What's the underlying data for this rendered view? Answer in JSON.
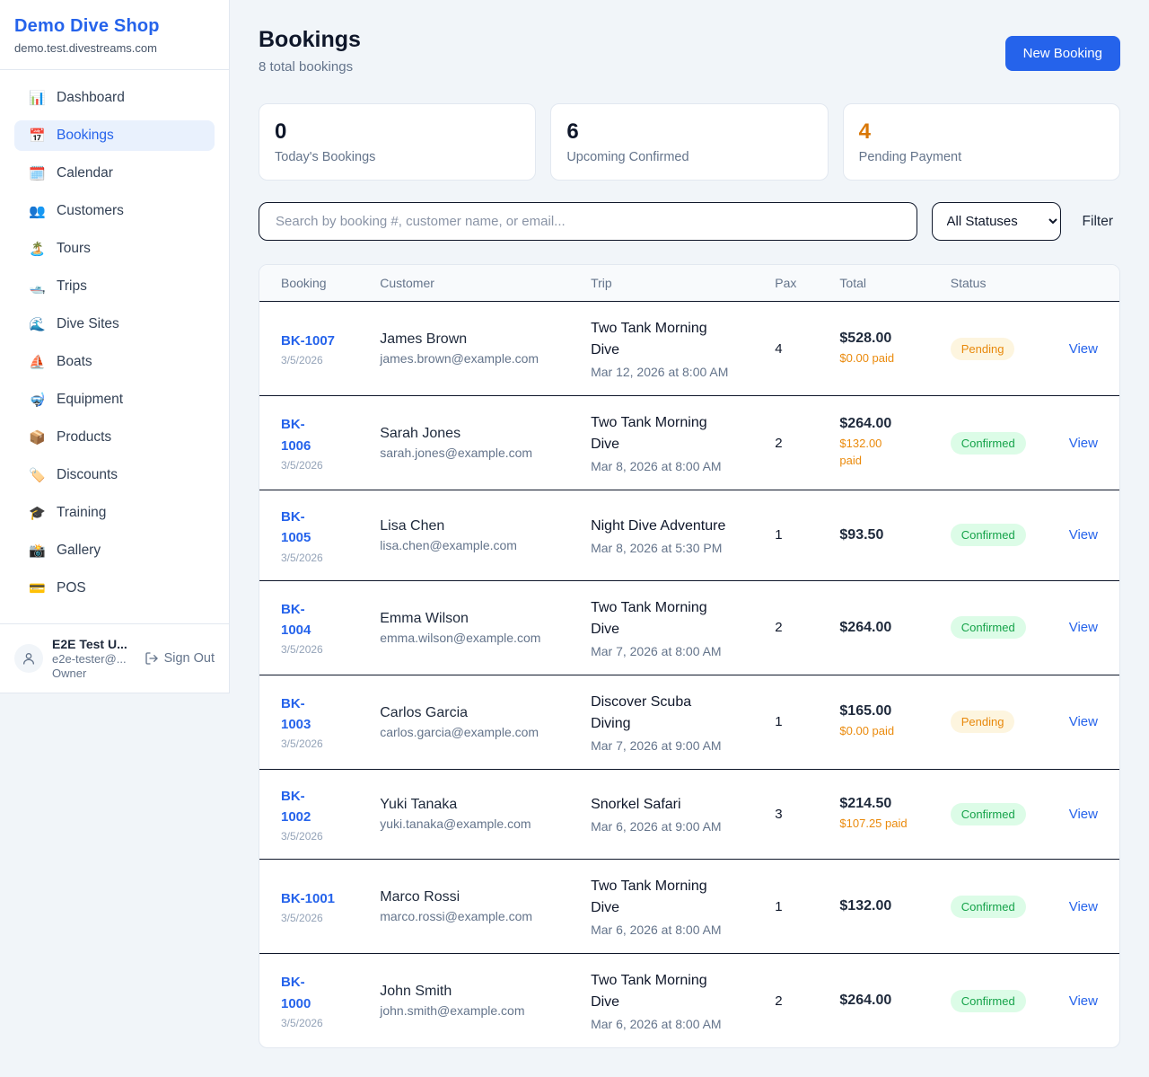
{
  "brand": {
    "name": "Demo Dive Shop",
    "domain": "demo.test.divestreams.com",
    "accent_color": "#2563eb"
  },
  "sidebar": {
    "items": [
      {
        "icon": "dashboard",
        "glyph": "📊",
        "label": "Dashboard",
        "active": false
      },
      {
        "icon": "bookings",
        "glyph": "📅",
        "label": "Bookings",
        "active": true
      },
      {
        "icon": "calendar",
        "glyph": "🗓️",
        "label": "Calendar",
        "active": false
      },
      {
        "icon": "customers",
        "glyph": "👥",
        "label": "Customers",
        "active": false
      },
      {
        "icon": "tours",
        "glyph": "🏝️",
        "label": "Tours",
        "active": false
      },
      {
        "icon": "trips",
        "glyph": "🛥️",
        "label": "Trips",
        "active": false
      },
      {
        "icon": "dive-sites",
        "glyph": "🌊",
        "label": "Dive Sites",
        "active": false
      },
      {
        "icon": "boats",
        "glyph": "⛵",
        "label": "Boats",
        "active": false
      },
      {
        "icon": "equipment",
        "glyph": "🤿",
        "label": "Equipment",
        "active": false
      },
      {
        "icon": "products",
        "glyph": "📦",
        "label": "Products",
        "active": false
      },
      {
        "icon": "discounts",
        "glyph": "🏷️",
        "label": "Discounts",
        "active": false
      },
      {
        "icon": "training",
        "glyph": "🎓",
        "label": "Training",
        "active": false
      },
      {
        "icon": "gallery",
        "glyph": "📸",
        "label": "Gallery",
        "active": false
      },
      {
        "icon": "pos",
        "glyph": "💳",
        "label": "POS",
        "active": false
      }
    ]
  },
  "user": {
    "name": "E2E Test U...",
    "email": "e2e-tester@...",
    "role": "Owner",
    "sign_out_label": "Sign Out"
  },
  "header": {
    "title": "Bookings",
    "subtitle": "8 total bookings",
    "new_booking_label": "New Booking"
  },
  "stats": [
    {
      "value": "0",
      "label": "Today's Bookings",
      "accent_color": "#0f172a"
    },
    {
      "value": "6",
      "label": "Upcoming Confirmed",
      "accent_color": "#0f172a"
    },
    {
      "value": "4",
      "label": "Pending Payment",
      "accent_color": "#d97706"
    }
  ],
  "controls": {
    "search_placeholder": "Search by booking #, customer name, or email...",
    "status_filter_value": "All Statuses",
    "filter_label": "Filter"
  },
  "status_colors": {
    "pending": {
      "bg": "#fdf5df",
      "text": "#e8890c"
    },
    "confirmed": {
      "bg": "#dcfce7",
      "text": "#16a34a"
    }
  },
  "table": {
    "columns": [
      "Booking",
      "Customer",
      "Trip",
      "Pax",
      "Total",
      "Status"
    ],
    "view_label": "View",
    "rows": [
      {
        "booking_id": "BK-1007",
        "booking_date": "3/5/2026",
        "customer_name": "James Brown",
        "customer_email": "james.brown@example.com",
        "trip_name": "Two Tank Morning Dive",
        "trip_datetime": "Mar 12, 2026 at 8:00 AM",
        "pax": "4",
        "total": "$528.00",
        "paid": "$0.00 paid",
        "status": "Pending"
      },
      {
        "booking_id": "BK-\n1006",
        "booking_date": "3/5/2026",
        "customer_name": "Sarah Jones",
        "customer_email": "sarah.jones@example.com",
        "trip_name": "Two Tank Morning Dive",
        "trip_datetime": "Mar 8, 2026 at 8:00 AM",
        "pax": "2",
        "total": "$264.00",
        "paid": "$132.00\npaid",
        "status": "Confirmed"
      },
      {
        "booking_id": "BK-\n1005",
        "booking_date": "3/5/2026",
        "customer_name": "Lisa Chen",
        "customer_email": "lisa.chen@example.com",
        "trip_name": "Night Dive Adventure",
        "trip_datetime": "Mar 8, 2026 at 5:30 PM",
        "pax": "1",
        "total": "$93.50",
        "paid": null,
        "status": "Confirmed"
      },
      {
        "booking_id": "BK-\n1004",
        "booking_date": "3/5/2026",
        "customer_name": "Emma Wilson",
        "customer_email": "emma.wilson@example.com",
        "trip_name": "Two Tank Morning Dive",
        "trip_datetime": "Mar 7, 2026 at 8:00 AM",
        "pax": "2",
        "total": "$264.00",
        "paid": null,
        "status": "Confirmed"
      },
      {
        "booking_id": "BK-\n1003",
        "booking_date": "3/5/2026",
        "customer_name": "Carlos Garcia",
        "customer_email": "carlos.garcia@example.com",
        "trip_name": "Discover Scuba Diving",
        "trip_datetime": "Mar 7, 2026 at 9:00 AM",
        "pax": "1",
        "total": "$165.00",
        "paid": "$0.00 paid",
        "status": "Pending"
      },
      {
        "booking_id": "BK-\n1002",
        "booking_date": "3/5/2026",
        "customer_name": "Yuki Tanaka",
        "customer_email": "yuki.tanaka@example.com",
        "trip_name": "Snorkel Safari",
        "trip_datetime": "Mar 6, 2026 at 9:00 AM",
        "pax": "3",
        "total": "$214.50",
        "paid": "$107.25 paid",
        "status": "Confirmed"
      },
      {
        "booking_id": "BK-1001",
        "booking_date": "3/5/2026",
        "customer_name": "Marco Rossi",
        "customer_email": "marco.rossi@example.com",
        "trip_name": "Two Tank Morning Dive",
        "trip_datetime": "Mar 6, 2026 at 8:00 AM",
        "pax": "1",
        "total": "$132.00",
        "paid": null,
        "status": "Confirmed"
      },
      {
        "booking_id": "BK-\n1000",
        "booking_date": "3/5/2026",
        "customer_name": "John Smith",
        "customer_email": "john.smith@example.com",
        "trip_name": "Two Tank Morning Dive",
        "trip_datetime": "Mar 6, 2026 at 8:00 AM",
        "pax": "2",
        "total": "$264.00",
        "paid": null,
        "status": "Confirmed"
      }
    ]
  }
}
